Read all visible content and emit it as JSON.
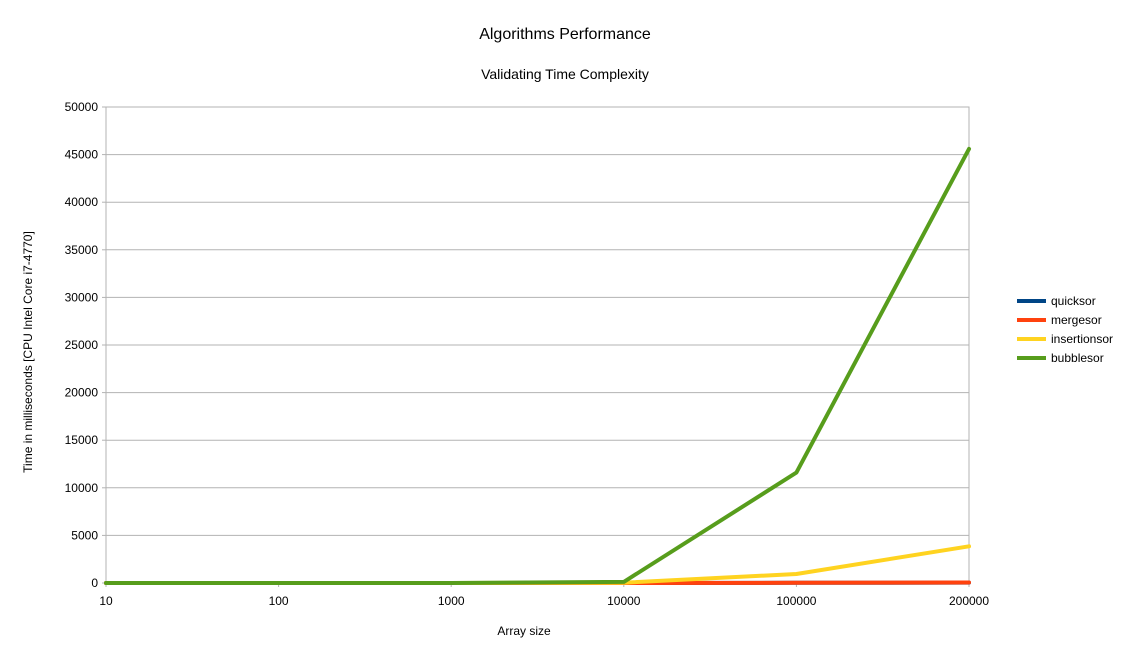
{
  "chart_data": {
    "type": "line",
    "title": "Algorithms Performance",
    "subtitle": "Validating Time Complexity",
    "xlabel": "Array size",
    "ylabel": "Time in milliseconds [CPU Intel Core i7-4770]",
    "categories": [
      "10",
      "100",
      "1000",
      "10000",
      "100000",
      "200000"
    ],
    "ylim": [
      0,
      50000
    ],
    "yticks": [
      0,
      5000,
      10000,
      15000,
      20000,
      25000,
      30000,
      35000,
      40000,
      45000,
      50000
    ],
    "grid": true,
    "legend_position": "right",
    "series": [
      {
        "name": "quicksor",
        "color": "#004586",
        "values": [
          0,
          0,
          0,
          2,
          20,
          40
        ]
      },
      {
        "name": "mergesor",
        "color": "#ff420e",
        "values": [
          0,
          0,
          0,
          3,
          25,
          50
        ]
      },
      {
        "name": "insertionsor",
        "color": "#ffd320",
        "values": [
          0,
          0,
          2,
          30,
          950,
          3850
        ]
      },
      {
        "name": "bubblesor",
        "color": "#579d1c",
        "values": [
          0,
          0,
          4,
          120,
          11600,
          45600
        ]
      }
    ]
  }
}
